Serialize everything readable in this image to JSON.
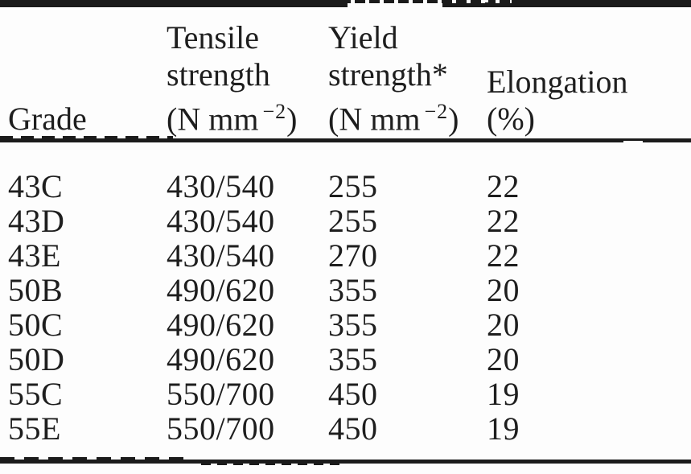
{
  "page": {
    "background": "#fdfdfd",
    "ink": "#1e1e1e",
    "rule_color": "#1b1b1b"
  },
  "header": {
    "col1": {
      "line3": "Grade"
    },
    "col2": {
      "line1": "Tensile",
      "line2": "strength",
      "unit_prefix": "(N mm",
      "unit_sup": "−2",
      "unit_suffix": ")"
    },
    "col3": {
      "line1": "Yield",
      "line2": "strength*",
      "unit_prefix": "(N mm",
      "unit_sup": "−2",
      "unit_suffix": ")"
    },
    "col4": {
      "line2": "Elongation",
      "line3": "(%)"
    }
  },
  "rows": [
    {
      "grade": "43C",
      "tensile": "430/540",
      "yield": "255",
      "elongation": "22"
    },
    {
      "grade": "43D",
      "tensile": "430/540",
      "yield": "255",
      "elongation": "22"
    },
    {
      "grade": "43E",
      "tensile": "430/540",
      "yield": "270",
      "elongation": "22"
    },
    {
      "grade": "50B",
      "tensile": "490/620",
      "yield": "355",
      "elongation": "20"
    },
    {
      "grade": "50C",
      "tensile": "490/620",
      "yield": "355",
      "elongation": "20"
    },
    {
      "grade": "50D",
      "tensile": "490/620",
      "yield": "355",
      "elongation": "20"
    },
    {
      "grade": "55C",
      "tensile": "550/700",
      "yield": "450",
      "elongation": "19"
    },
    {
      "grade": "55E",
      "tensile": "550/700",
      "yield": "450",
      "elongation": "19"
    }
  ]
}
